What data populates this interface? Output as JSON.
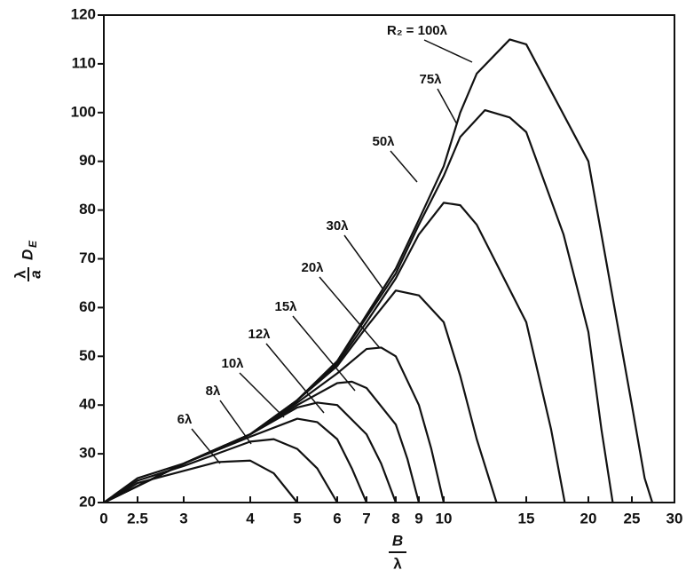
{
  "chart_data": {
    "type": "line",
    "ylabel_numerator": "λ",
    "ylabel_denominator": "a",
    "ylabel_symbol": "D",
    "ylabel_subscript": "E",
    "xlabel_numerator": "B",
    "xlabel_denominator": "λ",
    "xlim": [
      0,
      30
    ],
    "xticks": [
      0,
      2.5,
      3,
      4,
      5,
      6,
      7,
      8,
      9,
      10,
      15,
      20,
      25,
      30
    ],
    "ylim": [
      20,
      120
    ],
    "yticks": [
      20,
      30,
      40,
      50,
      60,
      70,
      80,
      90,
      100,
      110,
      120
    ],
    "color": "#111111",
    "series": [
      {
        "name": "6λ",
        "x": [
          0,
          2.5,
          3,
          3.5,
          4,
          4.5,
          5
        ],
        "values": [
          20,
          24,
          26.5,
          28.3,
          28.6,
          26,
          20
        ]
      },
      {
        "name": "8λ",
        "x": [
          0,
          2.5,
          3,
          4,
          4.5,
          5,
          5.5,
          6
        ],
        "values": [
          20,
          24.5,
          27.5,
          32.5,
          33,
          31,
          27,
          20
        ]
      },
      {
        "name": "10λ",
        "x": [
          0,
          2.5,
          3,
          4,
          5,
          5.5,
          6,
          6.5,
          7
        ],
        "values": [
          20,
          25,
          28,
          33.5,
          37.2,
          36.5,
          33,
          27,
          20
        ]
      },
      {
        "name": "12λ",
        "x": [
          0,
          3,
          4,
          5,
          5.5,
          6,
          7,
          7.5,
          8
        ],
        "values": [
          20,
          28,
          34,
          39.5,
          40.5,
          40,
          34,
          28,
          20
        ]
      },
      {
        "name": "15λ",
        "x": [
          0,
          3,
          4,
          5,
          6,
          6.5,
          7,
          8,
          8.5,
          9
        ],
        "values": [
          20,
          28,
          34,
          40,
          44.5,
          44.8,
          43.5,
          36,
          29,
          20
        ]
      },
      {
        "name": "20λ",
        "x": [
          0,
          3,
          4,
          5,
          6,
          7,
          7.5,
          8,
          9,
          9.5,
          10
        ],
        "values": [
          20,
          28,
          34,
          40.5,
          46.5,
          51.5,
          51.8,
          50,
          40,
          31,
          20
        ]
      },
      {
        "name": "30λ",
        "x": [
          0,
          3,
          4,
          5,
          6,
          7,
          8,
          9,
          10,
          11,
          12,
          13.2
        ],
        "values": [
          20,
          28,
          34,
          41,
          48,
          56,
          63.5,
          62.5,
          57,
          46,
          33,
          20
        ]
      },
      {
        "name": "50λ",
        "x": [
          0,
          3,
          4,
          5,
          6,
          7,
          8,
          9,
          10,
          11,
          12,
          15,
          17,
          18.1
        ],
        "values": [
          20,
          28,
          34,
          41,
          48.5,
          57,
          66,
          75,
          81.5,
          81,
          77,
          57,
          35,
          20
        ]
      },
      {
        "name": "75λ",
        "x": [
          0,
          3,
          4,
          5,
          6,
          7,
          8,
          9,
          10,
          11,
          12.5,
          14,
          15,
          18,
          20,
          21.5,
          22.8
        ],
        "values": [
          20,
          28,
          34,
          41,
          49,
          58,
          67,
          77,
          87,
          95,
          100.5,
          99,
          96,
          75,
          55,
          35,
          20
        ]
      },
      {
        "name": "R₂ = 100λ",
        "x": [
          0,
          3,
          4,
          5,
          6,
          7,
          8,
          9,
          10,
          11,
          12,
          14,
          15,
          20,
          22,
          25,
          26.5,
          27.4
        ],
        "values": [
          20,
          28,
          34,
          41,
          49,
          58.5,
          68,
          78,
          89,
          100,
          108,
          115,
          114,
          90,
          70,
          40,
          25,
          20
        ]
      }
    ]
  }
}
